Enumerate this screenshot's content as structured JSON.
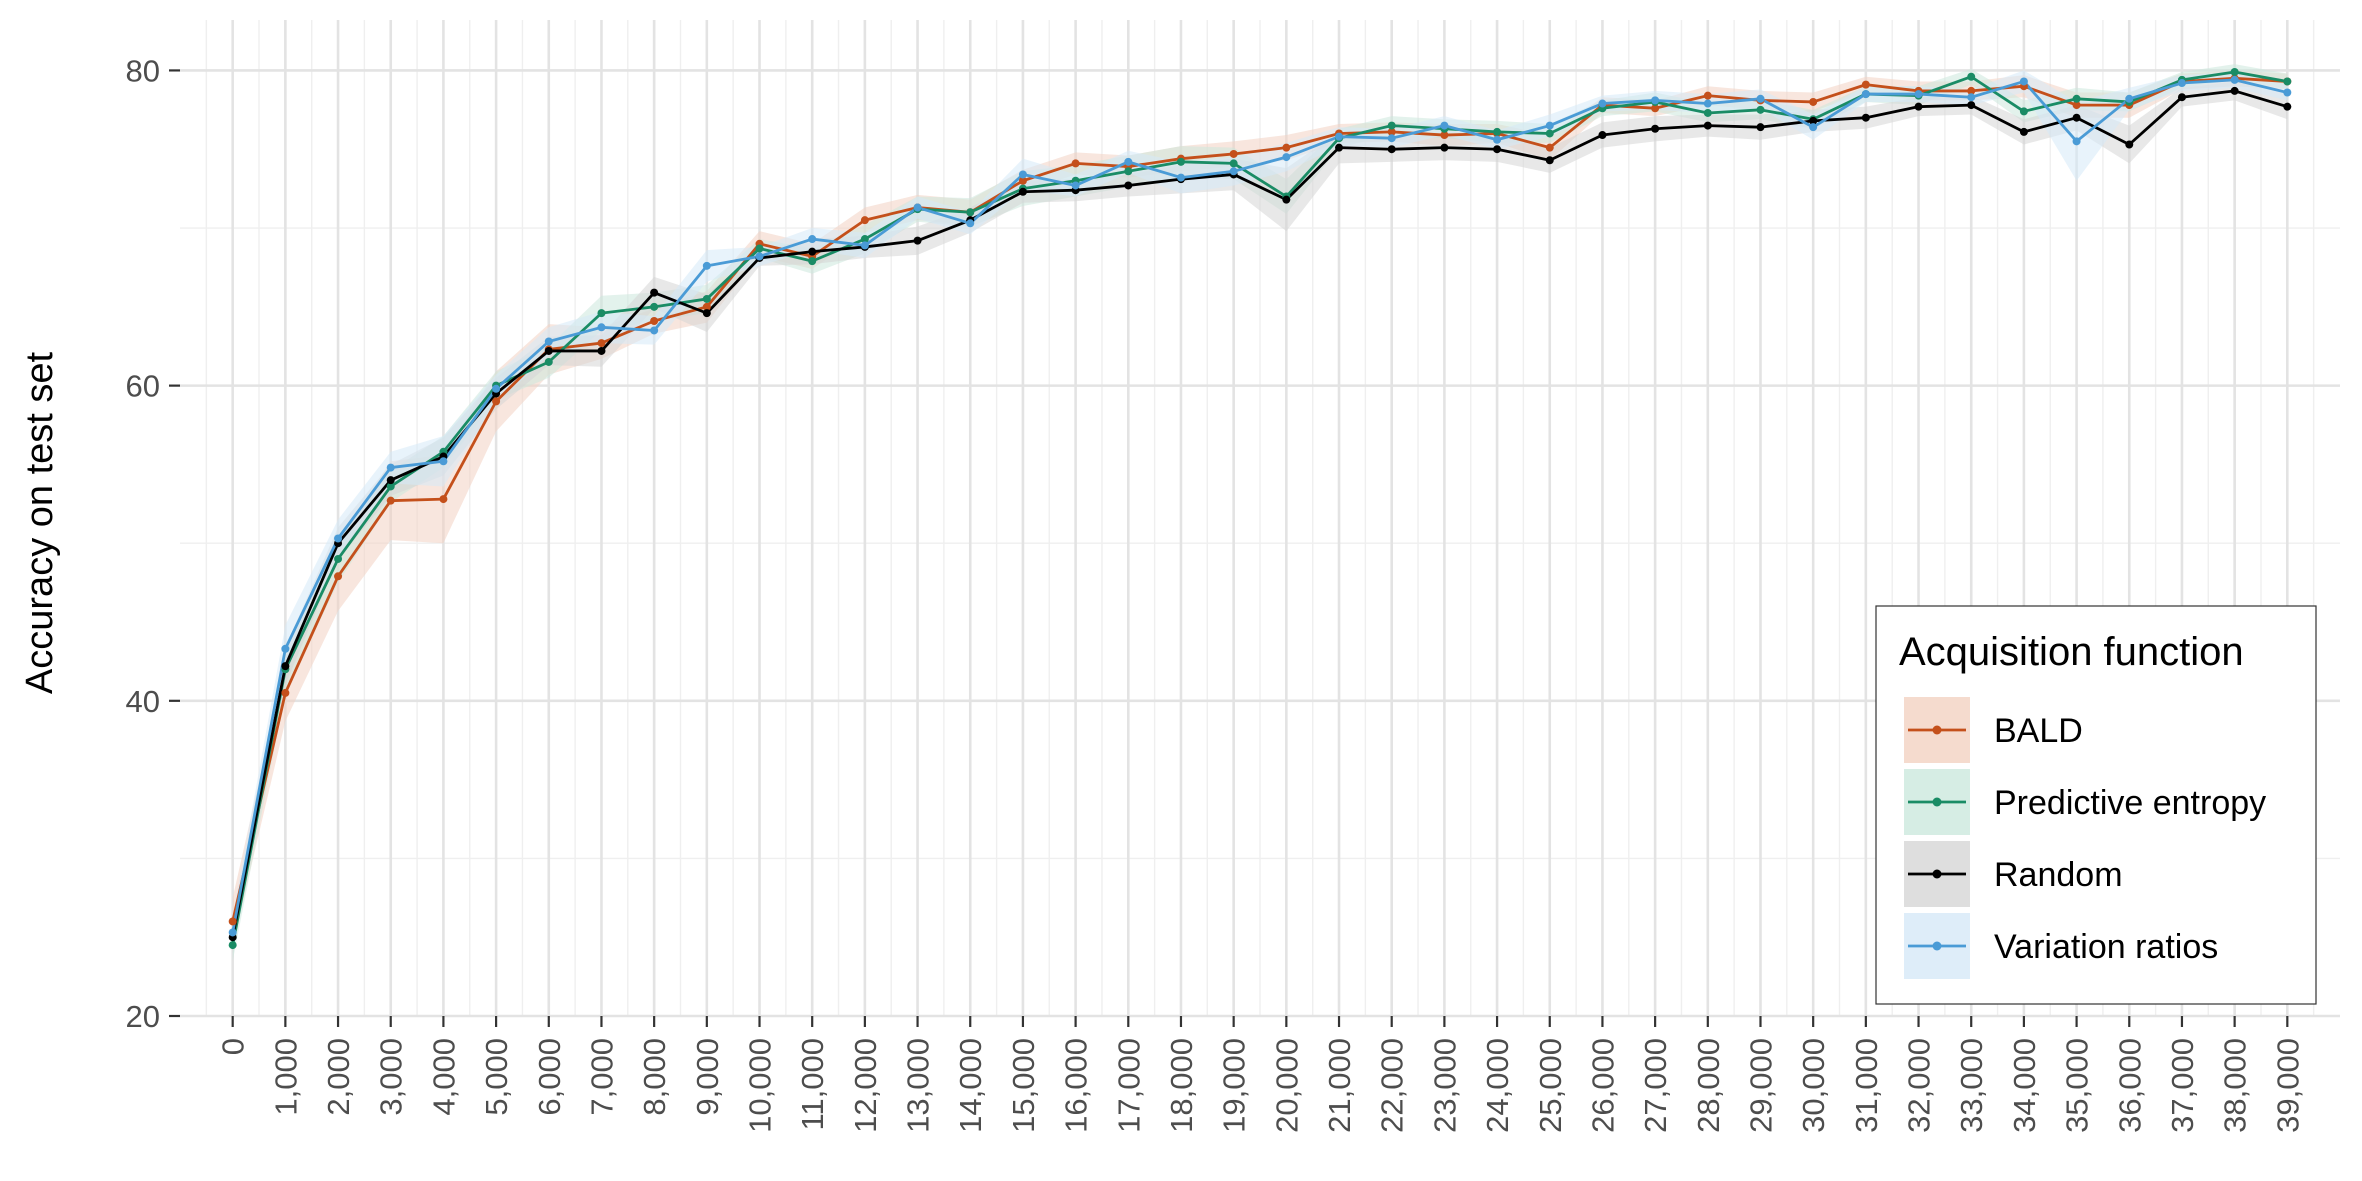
{
  "chart_data": {
    "type": "line",
    "title": "",
    "xlabel": "",
    "ylabel": "Accuracy on test set",
    "x": [
      0,
      1000,
      2000,
      3000,
      4000,
      5000,
      6000,
      7000,
      8000,
      9000,
      10000,
      11000,
      12000,
      13000,
      14000,
      15000,
      16000,
      17000,
      18000,
      19000,
      20000,
      21000,
      22000,
      23000,
      24000,
      25000,
      26000,
      27000,
      28000,
      29000,
      30000,
      31000,
      32000,
      33000,
      34000,
      35000,
      36000,
      37000,
      38000,
      39000
    ],
    "x_tick_labels": [
      "0",
      "1,000",
      "2,000",
      "3,000",
      "4,000",
      "5,000",
      "6,000",
      "7,000",
      "8,000",
      "9,000",
      "10,000",
      "11,000",
      "12,000",
      "13,000",
      "14,000",
      "15,000",
      "16,000",
      "17,000",
      "18,000",
      "19,000",
      "20,000",
      "21,000",
      "22,000",
      "23,000",
      "24,000",
      "25,000",
      "26,000",
      "27,000",
      "28,000",
      "29,000",
      "30,000",
      "31,000",
      "32,000",
      "33,000",
      "34,000",
      "35,000",
      "36,000",
      "37,000",
      "38,000",
      "39,000"
    ],
    "y_ticks": [
      20,
      40,
      60,
      80
    ],
    "y_tick_labels": [
      "20",
      "40",
      "60",
      "80"
    ],
    "ylim": [
      20,
      83.2
    ],
    "xlim": [
      -1000,
      40000
    ],
    "grid": true,
    "legend": {
      "title": "Acquisition function",
      "position": "bottom-right"
    },
    "series": [
      {
        "name": "BALD",
        "color": "#C4501B",
        "band_color": "#F3D2C2",
        "values": [
          26.0,
          40.5,
          47.9,
          52.7,
          52.8,
          59.0,
          62.3,
          62.7,
          64.1,
          65.0,
          69.0,
          68.2,
          70.5,
          71.3,
          71.0,
          73.0,
          74.1,
          73.9,
          74.4,
          74.7,
          75.1,
          76.0,
          76.1,
          75.9,
          76.0,
          75.1,
          77.8,
          77.6,
          78.4,
          78.1,
          78.0,
          79.1,
          78.7,
          78.7,
          79.0,
          77.8,
          77.8,
          79.3,
          79.5,
          79.3
        ],
        "band": [
          1.5,
          1.8,
          2.2,
          2.5,
          2.8,
          1.9,
          1.6,
          1.0,
          0.8,
          1.0,
          0.8,
          0.8,
          0.8,
          0.8,
          0.8,
          0.7,
          0.7,
          0.7,
          0.8,
          0.8,
          0.8,
          0.6,
          0.6,
          0.7,
          0.6,
          0.8,
          0.5,
          0.5,
          0.6,
          0.6,
          0.6,
          0.5,
          0.6,
          0.6,
          0.7,
          0.8,
          0.8,
          0.5,
          0.5,
          0.5
        ]
      },
      {
        "name": "Predictive entropy",
        "color": "#1A8C65",
        "band_color": "#CCE8DD",
        "values": [
          24.5,
          42.0,
          49.0,
          53.6,
          55.8,
          60.0,
          61.5,
          64.6,
          65.0,
          65.5,
          68.7,
          67.9,
          69.3,
          71.2,
          71.0,
          72.5,
          73.0,
          73.6,
          74.2,
          74.1,
          72.0,
          75.7,
          76.5,
          76.3,
          76.1,
          76.0,
          77.6,
          78.0,
          77.3,
          77.5,
          76.9,
          78.5,
          78.4,
          79.6,
          77.4,
          78.2,
          78.0,
          79.4,
          79.9,
          79.3
        ],
        "band": [
          1.0,
          1.5,
          1.5,
          1.0,
          1.0,
          0.9,
          1.0,
          1.1,
          0.9,
          0.9,
          0.6,
          0.8,
          0.9,
          0.8,
          0.9,
          1.1,
          1.0,
          1.0,
          1.0,
          1.0,
          1.1,
          0.6,
          0.6,
          0.6,
          0.7,
          0.6,
          0.5,
          0.6,
          0.6,
          0.6,
          0.6,
          0.5,
          0.6,
          0.5,
          0.7,
          0.7,
          0.6,
          0.5,
          0.5,
          0.5
        ]
      },
      {
        "name": "Random",
        "color": "#000000",
        "band_color": "#D6D6D6",
        "values": [
          25.0,
          42.2,
          50.0,
          54.0,
          55.5,
          59.5,
          62.2,
          62.2,
          65.9,
          64.6,
          68.1,
          68.5,
          68.8,
          69.2,
          70.5,
          72.3,
          72.4,
          72.7,
          73.1,
          73.4,
          71.8,
          75.1,
          75.0,
          75.1,
          75.0,
          74.3,
          75.9,
          76.3,
          76.5,
          76.4,
          76.8,
          77.0,
          77.7,
          77.8,
          76.1,
          77.0,
          75.3,
          78.3,
          78.7,
          77.7
        ],
        "band": [
          1.0,
          1.2,
          1.0,
          1.0,
          1.2,
          1.0,
          0.9,
          1.0,
          1.0,
          1.2,
          0.5,
          0.8,
          0.7,
          0.9,
          0.8,
          0.7,
          0.7,
          0.7,
          0.9,
          1.0,
          2.0,
          1.0,
          0.8,
          0.8,
          0.8,
          0.8,
          0.8,
          0.8,
          0.7,
          0.8,
          0.7,
          0.7,
          0.6,
          0.6,
          0.8,
          0.8,
          1.2,
          0.6,
          0.6,
          0.8
        ]
      },
      {
        "name": "Variation ratios",
        "color": "#4A9BD6",
        "band_color": "#D6E9F7",
        "values": [
          25.3,
          43.3,
          50.3,
          54.8,
          55.2,
          59.8,
          62.8,
          63.7,
          63.5,
          67.6,
          68.2,
          69.3,
          68.9,
          71.3,
          70.3,
          73.4,
          72.7,
          74.2,
          73.2,
          73.6,
          74.5,
          75.8,
          75.7,
          76.5,
          75.6,
          76.5,
          77.9,
          78.1,
          77.9,
          78.2,
          76.4,
          78.5,
          78.5,
          78.3,
          79.3,
          75.5,
          78.2,
          79.2,
          79.4,
          78.6
        ],
        "band": [
          1.0,
          1.5,
          1.2,
          1.0,
          1.6,
          0.9,
          0.9,
          1.0,
          0.9,
          1.0,
          0.6,
          0.7,
          0.8,
          0.7,
          0.7,
          1.0,
          0.7,
          0.7,
          1.0,
          0.9,
          0.9,
          0.6,
          0.6,
          0.6,
          0.6,
          0.7,
          0.5,
          0.6,
          0.6,
          0.6,
          0.8,
          0.5,
          0.5,
          0.5,
          0.7,
          2.5,
          0.7,
          0.5,
          0.5,
          0.5
        ]
      }
    ]
  }
}
